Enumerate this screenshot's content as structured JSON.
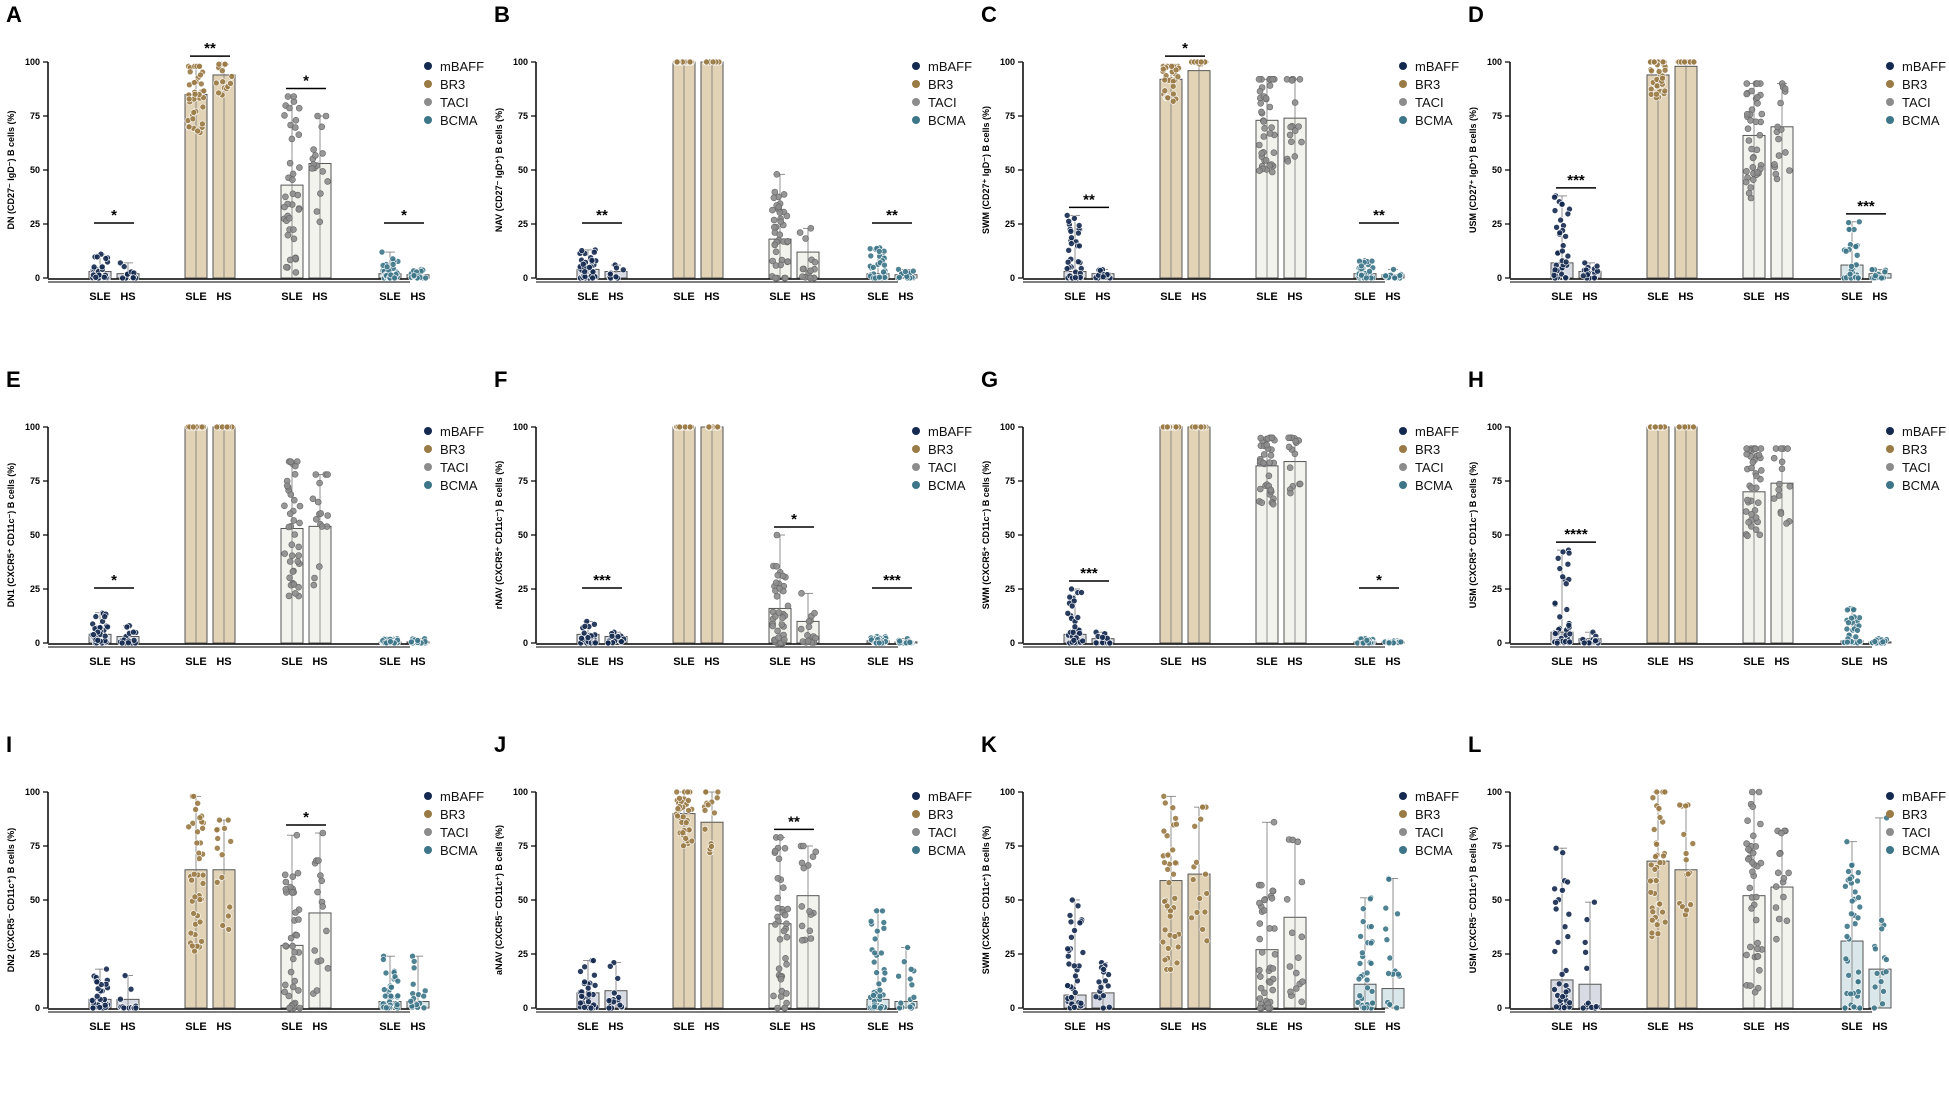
{
  "colors": {
    "mBAFF": "#14294f",
    "BR3": "#9a7a45",
    "TACI": "#8c8c8c",
    "BCMA": "#3d7688",
    "barFill": [
      "#d8dbe3",
      "#e2d3b6",
      "#f3f3ee",
      "#d9e6ea"
    ]
  },
  "legend": [
    "mBAFF",
    "BR3",
    "TACI",
    "BCMA"
  ],
  "groups": [
    "SLE",
    "HS"
  ],
  "panels": [
    {
      "label": "A",
      "ylabel": "DN (CD27⁻ IgD⁻) B cells (%)",
      "yticks": [
        "0",
        "25",
        "50",
        "75",
        "100"
      ],
      "means": [
        [
          3,
          2
        ],
        [
          85,
          94
        ],
        [
          43,
          53
        ],
        [
          2,
          1.5
        ]
      ],
      "maxes": [
        [
          11,
          7
        ],
        [
          98,
          99
        ],
        [
          84,
          75
        ],
        [
          12,
          4
        ]
      ],
      "sig": [
        {
          "receptor": "mBAFF",
          "text": "*"
        },
        {
          "receptor": "BR3",
          "text": "**"
        },
        {
          "receptor": "TACI",
          "text": "*"
        },
        {
          "receptor": "BCMA",
          "text": "*"
        }
      ]
    },
    {
      "label": "B",
      "ylabel": "NAV (CD27⁻ IgD⁺) B cells (%)",
      "yticks": [
        "0",
        "25",
        "50",
        "75",
        "100"
      ],
      "means": [
        [
          4,
          3
        ],
        [
          100,
          100
        ],
        [
          18,
          12
        ],
        [
          2,
          1.5
        ]
      ],
      "maxes": [
        [
          13,
          6
        ],
        [
          100,
          100
        ],
        [
          48,
          23
        ],
        [
          14,
          4
        ]
      ],
      "sig": [
        {
          "receptor": "mBAFF",
          "text": "**"
        },
        {
          "receptor": "BCMA",
          "text": "**"
        }
      ]
    },
    {
      "label": "C",
      "ylabel": "SWM (CD27⁺ IgD⁻) B cells (%)",
      "yticks": [
        "0",
        "25",
        "50",
        "75",
        "100"
      ],
      "means": [
        [
          3,
          2
        ],
        [
          92,
          96
        ],
        [
          73,
          74
        ],
        [
          2,
          1.5
        ]
      ],
      "maxes": [
        [
          29,
          4
        ],
        [
          98,
          99
        ],
        [
          92,
          92
        ],
        [
          8,
          4
        ]
      ],
      "sig": [
        {
          "receptor": "mBAFF",
          "text": "**"
        },
        {
          "receptor": "BR3",
          "text": "*"
        },
        {
          "receptor": "BCMA",
          "text": "**"
        }
      ]
    },
    {
      "label": "D",
      "ylabel": "USM (CD27⁺ IgD⁺) B cells (%)",
      "yticks": [
        "0",
        "25",
        "50",
        "75",
        "100"
      ],
      "means": [
        [
          7,
          3
        ],
        [
          94,
          98
        ],
        [
          66,
          70
        ],
        [
          6,
          2
        ]
      ],
      "maxes": [
        [
          38,
          7
        ],
        [
          100,
          100
        ],
        [
          90,
          90
        ],
        [
          26,
          4
        ]
      ],
      "sig": [
        {
          "receptor": "mBAFF",
          "text": "***"
        },
        {
          "receptor": "BCMA",
          "text": "***"
        }
      ]
    },
    {
      "label": "E",
      "ylabel": "DN1 (CXCR5⁺ CD11c⁻) B cells (%)",
      "yticks": [
        "0",
        "25",
        "50",
        "75",
        "100"
      ],
      "means": [
        [
          4,
          3
        ],
        [
          100,
          100
        ],
        [
          53,
          54
        ],
        [
          0.5,
          0.5
        ]
      ],
      "maxes": [
        [
          14,
          8
        ],
        [
          100,
          100
        ],
        [
          84,
          78
        ],
        [
          2,
          2
        ]
      ],
      "sig": [
        {
          "receptor": "mBAFF",
          "text": "*"
        }
      ]
    },
    {
      "label": "F",
      "ylabel": "rNAV (CXCR5⁺ CD11c⁻) B cells (%)",
      "yticks": [
        "0",
        "25",
        "50",
        "75",
        "100"
      ],
      "means": [
        [
          4,
          3
        ],
        [
          100,
          100
        ],
        [
          16,
          10
        ],
        [
          1,
          0.5
        ]
      ],
      "maxes": [
        [
          10,
          5
        ],
        [
          100,
          100
        ],
        [
          50,
          23
        ],
        [
          3,
          2
        ]
      ],
      "sig": [
        {
          "receptor": "mBAFF",
          "text": "***"
        },
        {
          "receptor": "TACI",
          "text": "*"
        },
        {
          "receptor": "BCMA",
          "text": "***"
        }
      ]
    },
    {
      "label": "G",
      "ylabel": "SWM (CXCR5⁺ CD11c⁻) B cells (%)",
      "yticks": [
        "0",
        "25",
        "50",
        "75",
        "100"
      ],
      "means": [
        [
          4,
          2
        ],
        [
          100,
          100
        ],
        [
          82,
          84
        ],
        [
          0.5,
          0.5
        ]
      ],
      "maxes": [
        [
          25,
          5
        ],
        [
          100,
          100
        ],
        [
          95,
          95
        ],
        [
          2,
          1
        ]
      ],
      "sig": [
        {
          "receptor": "mBAFF",
          "text": "***"
        },
        {
          "receptor": "BCMA",
          "text": "*"
        }
      ]
    },
    {
      "label": "H",
      "ylabel": "USM (CXCR5⁺ CD11c⁻) B cells (%)",
      "yticks": [
        "0",
        "25",
        "50",
        "75",
        "100"
      ],
      "means": [
        [
          5,
          2
        ],
        [
          100,
          100
        ],
        [
          70,
          74
        ],
        [
          1,
          0.5
        ]
      ],
      "maxes": [
        [
          43,
          5
        ],
        [
          100,
          100
        ],
        [
          90,
          90
        ],
        [
          16,
          2
        ]
      ],
      "sig": [
        {
          "receptor": "mBAFF",
          "text": "****"
        }
      ]
    },
    {
      "label": "I",
      "ylabel": "DN2 (CXCR5⁻ CD11c⁺) B cells (%)",
      "yticks": [
        "0",
        "25",
        "50",
        "75",
        "100"
      ],
      "means": [
        [
          4,
          4
        ],
        [
          64,
          64
        ],
        [
          29,
          44
        ],
        [
          3,
          3
        ]
      ],
      "maxes": [
        [
          18,
          15
        ],
        [
          98,
          87
        ],
        [
          80,
          81
        ],
        [
          24,
          24
        ]
      ],
      "sig": [
        {
          "receptor": "TACI",
          "text": "*"
        }
      ]
    },
    {
      "label": "J",
      "ylabel": "aNAV (CXCR5⁻ CD11c⁺) B cells (%)",
      "yticks": [
        "0",
        "25",
        "50",
        "75",
        "100"
      ],
      "means": [
        [
          7,
          8
        ],
        [
          90,
          86
        ],
        [
          39,
          52
        ],
        [
          4,
          3
        ]
      ],
      "maxes": [
        [
          22,
          21
        ],
        [
          100,
          100
        ],
        [
          79,
          75
        ],
        [
          45,
          28
        ]
      ],
      "sig": [
        {
          "receptor": "TACI",
          "text": "**"
        }
      ]
    },
    {
      "label": "K",
      "ylabel": "SWM (CXCR5⁻ CD11c⁺) B cells (%)",
      "yticks": [
        "0",
        "25",
        "50",
        "75",
        "100"
      ],
      "means": [
        [
          6,
          7
        ],
        [
          59,
          62
        ],
        [
          27,
          42
        ],
        [
          11,
          9
        ]
      ],
      "maxes": [
        [
          50,
          21
        ],
        [
          98,
          93
        ],
        [
          86,
          78
        ],
        [
          51,
          60
        ]
      ],
      "sig": []
    },
    {
      "label": "L",
      "ylabel": "USM (CXCR5⁻ CD11c⁺) B cells (%)",
      "yticks": [
        "0",
        "25",
        "50",
        "75",
        "100"
      ],
      "means": [
        [
          13,
          11
        ],
        [
          68,
          64
        ],
        [
          52,
          56
        ],
        [
          31,
          18
        ]
      ],
      "maxes": [
        [
          74,
          49
        ],
        [
          100,
          94
        ],
        [
          100,
          82
        ],
        [
          77,
          88
        ]
      ],
      "sig": []
    }
  ],
  "chart_data": {
    "type": "bar",
    "description_series": "Per panel: 4 receptors (mBAFF, BR3, TACI, BCMA) x 2 groups (SLE, HS); bar height = mean (%), whisker top = max (%)",
    "categories": [
      "SLE",
      "HS"
    ],
    "series": [
      "mBAFF",
      "BR3",
      "TACI",
      "BCMA"
    ],
    "ylim": [
      0,
      100
    ]
  }
}
